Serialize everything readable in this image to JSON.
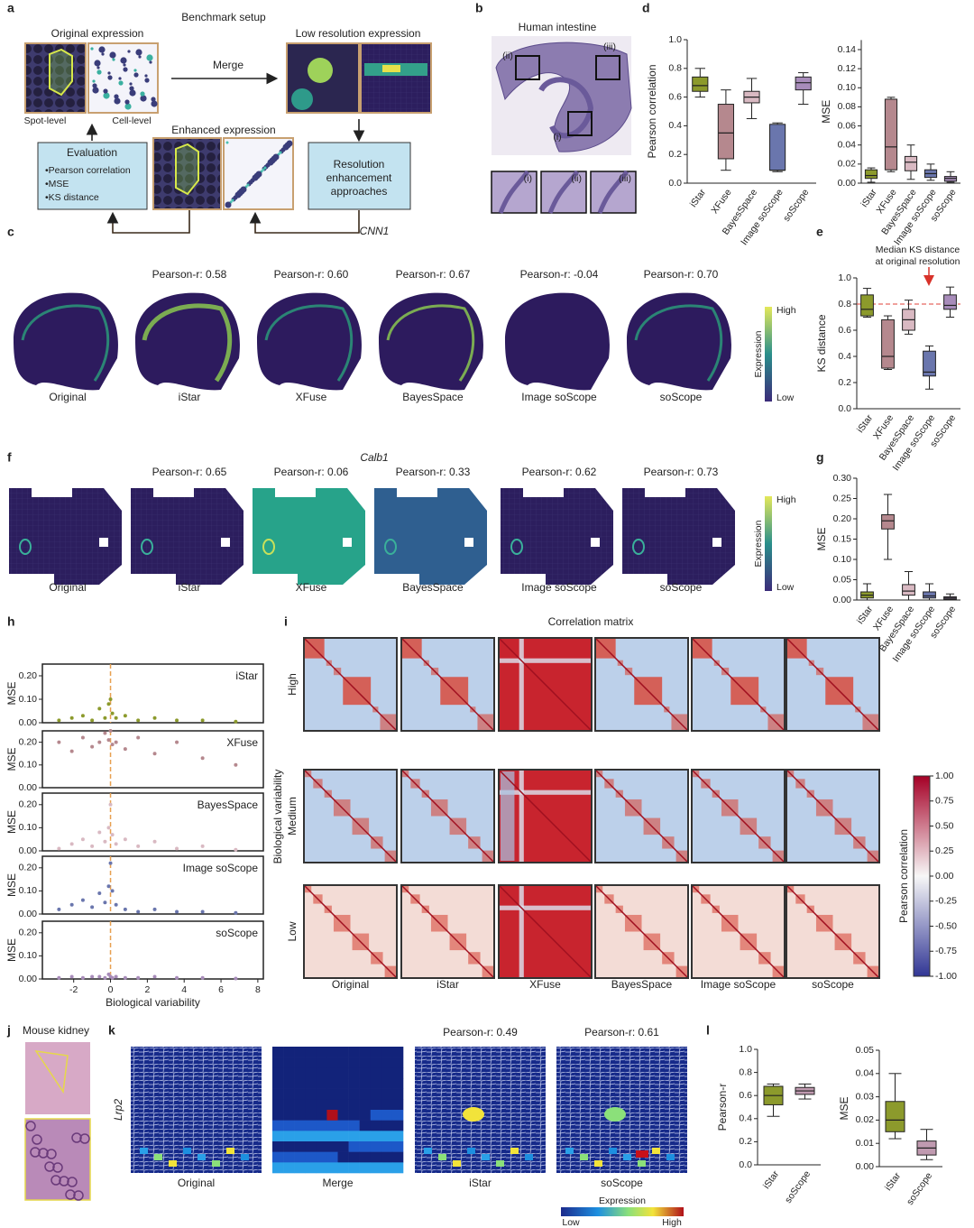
{
  "figure": {
    "panel_labels": [
      "a",
      "b",
      "c",
      "d",
      "e",
      "f",
      "g",
      "h",
      "i",
      "j",
      "k",
      "l"
    ],
    "methods": [
      "Original",
      "iStar",
      "XFuse",
      "BayesSpace",
      "Image soScope",
      "soScope"
    ],
    "panel_a": {
      "title": "Benchmark setup",
      "original": "Original expression",
      "spot": "Spot-level",
      "cell": "Cell-level",
      "merge": "Merge",
      "low": "Low resolution expression",
      "enhanced": "Enhanced expression",
      "evaluation": "Evaluation",
      "metrics": [
        "•Pearson correlation",
        "•MSE",
        "•KS distance"
      ],
      "approaches": [
        "Resolution",
        "enhancement",
        "approaches"
      ]
    },
    "panel_b": {
      "title": "Human intestine",
      "regions": [
        "(i)",
        "(ii)",
        "(iii)"
      ]
    },
    "panel_c": {
      "gene": "CNN1",
      "pearson": [
        "Pearson-r: 0.58",
        "Pearson-r: 0.60",
        "Pearson-r: 0.67",
        "Pearson-r: -0.04",
        "Pearson-r: 0.70"
      ],
      "colorbar": {
        "label": "Expression",
        "high": "High",
        "low": "Low"
      }
    },
    "panel_f": {
      "gene": "Calb1",
      "pearson": [
        "Pearson-r: 0.65",
        "Pearson-r: 0.06",
        "Pearson-r: 0.33",
        "Pearson-r: 0.62",
        "Pearson-r: 0.73"
      ],
      "colorbar": {
        "label": "Expression",
        "high": "High",
        "low": "Low"
      }
    },
    "panel_i": {
      "title": "Correlation matrix",
      "ylabel": "Biological variability",
      "rows": [
        "High",
        "Medium",
        "Low"
      ]
    },
    "panel_j": {
      "title": "Mouse kidney"
    },
    "panel_k": {
      "gene": "Lrp2",
      "columns": [
        "Original",
        "Merge",
        "iStar",
        "soScope"
      ],
      "pearson": [
        "Pearson-r: 0.49",
        "Pearson-r: 0.61"
      ],
      "colorbar": {
        "label": "Expression",
        "low": "Low",
        "high": "High"
      }
    }
  },
  "chart_data": [
    {
      "type": "box",
      "ylabel": "Pearson correlation",
      "categories": [
        "iStar",
        "XFuse",
        "BayesSpace",
        "Image soScope",
        "soScope"
      ],
      "colors": [
        "#8c9a2c",
        "#b5888e",
        "#d9b9c2",
        "#6a76ad",
        "#a88cba"
      ],
      "values": [
        [
          0.6,
          0.64,
          0.68,
          0.74,
          0.8
        ],
        [
          0.09,
          0.17,
          0.35,
          0.55,
          0.65
        ],
        [
          0.45,
          0.56,
          0.6,
          0.64,
          0.73
        ],
        [
          0.08,
          0.09,
          0.09,
          0.41,
          0.42
        ],
        [
          0.55,
          0.65,
          0.7,
          0.74,
          0.77
        ]
      ],
      "ylim": [
        0,
        1
      ],
      "yticks": [
        {
          "value": 0,
          "label": "0.0"
        },
        0.2,
        0.4,
        0.6,
        0.8,
        {
          "value": 1,
          "label": "1.0"
        }
      ]
    },
    {
      "type": "box",
      "ylabel": "MSE",
      "categories": [
        "iStar",
        "XFuse",
        "BayesSpace",
        "Image soScope",
        "soScope"
      ],
      "colors": [
        "#8c9a2c",
        "#b5888e",
        "#d9b9c2",
        "#6a76ad",
        "#a88cba"
      ],
      "values": [
        [
          0.001,
          0.005,
          0.008,
          0.014,
          0.016
        ],
        [
          0.012,
          0.014,
          0.038,
          0.088,
          0.09
        ],
        [
          0.004,
          0.013,
          0.022,
          0.028,
          0.04
        ],
        [
          0.003,
          0.006,
          0.01,
          0.014,
          0.02
        ],
        [
          0.001,
          0.002,
          0.005,
          0.007,
          0.012
        ]
      ],
      "ylim": [
        0,
        0.15
      ],
      "yticks": [
        {
          "value": 0,
          "label": "0.00"
        },
        0.02,
        0.04,
        0.06,
        0.08,
        {
          "value": 0.1,
          "label": "0.10"
        },
        0.12,
        0.14
      ]
    },
    {
      "type": "box",
      "ylabel": "KS distance",
      "categories": [
        "iStar",
        "XFuse",
        "BayesSpace",
        "Image soScope",
        "soScope"
      ],
      "colors": [
        "#8c9a2c",
        "#b5888e",
        "#d9b9c2",
        "#6a76ad",
        "#a88cba"
      ],
      "values": [
        [
          0.7,
          0.71,
          0.76,
          0.87,
          0.92
        ],
        [
          0.3,
          0.31,
          0.4,
          0.68,
          0.71
        ],
        [
          0.57,
          0.6,
          0.68,
          0.76,
          0.83
        ],
        [
          0.15,
          0.25,
          0.28,
          0.44,
          0.48
        ],
        [
          0.7,
          0.76,
          0.79,
          0.87,
          0.93
        ]
      ],
      "ylim": [
        0,
        1
      ],
      "yticks": [
        {
          "value": 0,
          "label": "0.0"
        },
        0.2,
        0.4,
        0.6,
        0.8,
        {
          "value": 1,
          "label": "1.0"
        }
      ],
      "refline": 0.8,
      "annotation": [
        "Median KS distance",
        "at original resolution"
      ]
    },
    {
      "type": "box",
      "ylabel": "MSE",
      "categories": [
        "iStar",
        "XFuse",
        "BayesSpace",
        "Image soScope",
        "soScope"
      ],
      "colors": [
        "#8c9a2c",
        "#b5888e",
        "#d9b9c2",
        "#6a76ad",
        "#a88cba"
      ],
      "values": [
        [
          0,
          0.005,
          0.012,
          0.02,
          0.04
        ],
        [
          0.1,
          0.175,
          0.195,
          0.21,
          0.26
        ],
        [
          0,
          0.012,
          0.022,
          0.038,
          0.07
        ],
        [
          0,
          0.005,
          0.01,
          0.02,
          0.04
        ],
        [
          0,
          0.002,
          0.005,
          0.008,
          0.015
        ]
      ],
      "ylim": [
        0,
        0.3
      ],
      "yticks": [
        {
          "value": 0,
          "label": "0.00"
        },
        0.05,
        {
          "value": 0.1,
          "label": "0.10"
        },
        0.15,
        {
          "value": 0.2,
          "label": "0.20"
        },
        0.25,
        {
          "value": 0.3,
          "label": "0.30"
        }
      ]
    },
    {
      "type": "scatter",
      "name": "iStar",
      "color": "#8c9a2c",
      "ylabel": "MSE",
      "x": [
        -2.8,
        -2.1,
        -1.5,
        -1,
        -0.6,
        -0.3,
        -0.1,
        0,
        0.1,
        0.3,
        0.8,
        1.5,
        2.4,
        3.6,
        5,
        6.8
      ],
      "y": [
        0.01,
        0.02,
        0.03,
        0.01,
        0.06,
        0.02,
        0.08,
        0.1,
        0.04,
        0.02,
        0.03,
        0.01,
        0.02,
        0.01,
        0.01,
        0.005
      ],
      "xlim": [
        -3.7,
        8.3
      ],
      "ylim": [
        0,
        0.25
      ],
      "yticks": [
        {
          "value": 0,
          "label": "0.00"
        },
        {
          "value": 0.1,
          "label": "0.10"
        },
        {
          "value": 0.2,
          "label": "0.20"
        }
      ],
      "vline": 0
    },
    {
      "type": "scatter",
      "name": "XFuse",
      "color": "#b5888e",
      "ylabel": "MSE",
      "x": [
        -2.8,
        -2.1,
        -1.5,
        -1,
        -0.6,
        -0.3,
        -0.1,
        0,
        0.1,
        0.3,
        0.8,
        1.5,
        2.4,
        3.6,
        5,
        6.8
      ],
      "y": [
        0.2,
        0.16,
        0.22,
        0.18,
        0.2,
        0.24,
        0.21,
        0.25,
        0.19,
        0.2,
        0.17,
        0.22,
        0.15,
        0.2,
        0.13,
        0.1
      ],
      "xlim": [
        -3.7,
        8.3
      ],
      "ylim": [
        0,
        0.25
      ],
      "yticks": [
        {
          "value": 0,
          "label": "0.00"
        },
        {
          "value": 0.1,
          "label": "0.10"
        },
        {
          "value": 0.2,
          "label": "0.20"
        }
      ],
      "vline": 0
    },
    {
      "type": "scatter",
      "name": "BayesSpace",
      "color": "#d9b9c2",
      "ylabel": "MSE",
      "x": [
        -2.8,
        -2.1,
        -1.5,
        -1,
        -0.6,
        -0.3,
        -0.1,
        0,
        0.1,
        0.3,
        0.8,
        1.5,
        2.4,
        3.6,
        5,
        6.8
      ],
      "y": [
        0.01,
        0.03,
        0.05,
        0.02,
        0.08,
        0.04,
        0.1,
        0.2,
        0.07,
        0.03,
        0.05,
        0.02,
        0.04,
        0.01,
        0.02,
        0.005
      ],
      "xlim": [
        -3.7,
        8.3
      ],
      "ylim": [
        0,
        0.25
      ],
      "yticks": [
        {
          "value": 0,
          "label": "0.00"
        },
        {
          "value": 0.1,
          "label": "0.10"
        },
        {
          "value": 0.2,
          "label": "0.20"
        }
      ],
      "vline": 0
    },
    {
      "type": "scatter",
      "name": "Image soScope",
      "color": "#6a76ad",
      "ylabel": "MSE",
      "x": [
        -2.8,
        -2.1,
        -1.5,
        -1,
        -0.6,
        -0.3,
        -0.1,
        0,
        0.1,
        0.3,
        0.8,
        1.5,
        2.4,
        3.6,
        5,
        6.8
      ],
      "y": [
        0.02,
        0.04,
        0.06,
        0.03,
        0.09,
        0.05,
        0.12,
        0.22,
        0.1,
        0.04,
        0.02,
        0.01,
        0.02,
        0.01,
        0.01,
        0.005
      ],
      "xlim": [
        -3.7,
        8.3
      ],
      "ylim": [
        0,
        0.25
      ],
      "yticks": [
        {
          "value": 0,
          "label": "0.00"
        },
        {
          "value": 0.1,
          "label": "0.10"
        },
        {
          "value": 0.2,
          "label": "0.20"
        }
      ],
      "vline": 0
    },
    {
      "type": "scatter",
      "name": "soScope",
      "color": "#a88cba",
      "ylabel": "MSE",
      "x": [
        -2.8,
        -2.1,
        -1.5,
        -1,
        -0.6,
        -0.3,
        -0.1,
        0,
        0.1,
        0.3,
        0.8,
        1.5,
        2.4,
        3.6,
        5,
        6.8
      ],
      "y": [
        0.005,
        0.01,
        0.005,
        0.01,
        0.01,
        0.005,
        0.02,
        0.01,
        0.005,
        0.01,
        0.005,
        0.005,
        0.01,
        0.005,
        0.005,
        0.002
      ],
      "xlim": [
        -3.7,
        8.3
      ],
      "ylim": [
        0,
        0.25
      ],
      "yticks": [
        {
          "value": 0,
          "label": "0.00"
        },
        {
          "value": 0.1,
          "label": "0.10"
        },
        {
          "value": 0.2,
          "label": "0.20"
        }
      ],
      "vline": 0,
      "xticks": [
        -2,
        0,
        2,
        4,
        6,
        8
      ],
      "xlabel": "Biological variability"
    },
    {
      "type": "colorbar",
      "label": "Pearson correlation",
      "colors": [
        "#313695",
        "#f7f7f7",
        "#a50026"
      ],
      "ylim": [
        -1,
        1
      ],
      "yticks": [
        {
          "value": 1,
          "label": "1.00"
        },
        0.75,
        {
          "value": 0.5,
          "label": "0.50"
        },
        0.25,
        {
          "value": 0,
          "label": "0.00"
        },
        -0.25,
        {
          "value": -0.5,
          "label": "-0.50"
        },
        -0.75,
        {
          "value": -1,
          "label": "-1.00"
        }
      ]
    },
    {
      "type": "box",
      "ylabel": "Pearson-r",
      "categories": [
        "iStar",
        "soScope"
      ],
      "colors": [
        "#8c9a2c",
        "#c09ab0"
      ],
      "values": [
        [
          0.42,
          0.52,
          0.6,
          0.68,
          0.7
        ],
        [
          0.57,
          0.61,
          0.64,
          0.67,
          0.7
        ]
      ],
      "ylim": [
        0,
        1
      ],
      "yticks": [
        {
          "value": 0,
          "label": "0.0"
        },
        0.2,
        0.4,
        0.6,
        0.8,
        {
          "value": 1,
          "label": "1.0"
        }
      ]
    },
    {
      "type": "box",
      "ylabel": "MSE",
      "categories": [
        "iStar",
        "soScope"
      ],
      "colors": [
        "#8c9a2c",
        "#c09ab0"
      ],
      "values": [
        [
          0.012,
          0.015,
          0.02,
          0.028,
          0.04
        ],
        [
          0.003,
          0.005,
          0.008,
          0.011,
          0.016
        ]
      ],
      "ylim": [
        0,
        0.05
      ],
      "yticks": [
        {
          "value": 0,
          "label": "0.00"
        },
        0.01,
        0.02,
        0.03,
        0.04,
        0.05
      ]
    }
  ]
}
